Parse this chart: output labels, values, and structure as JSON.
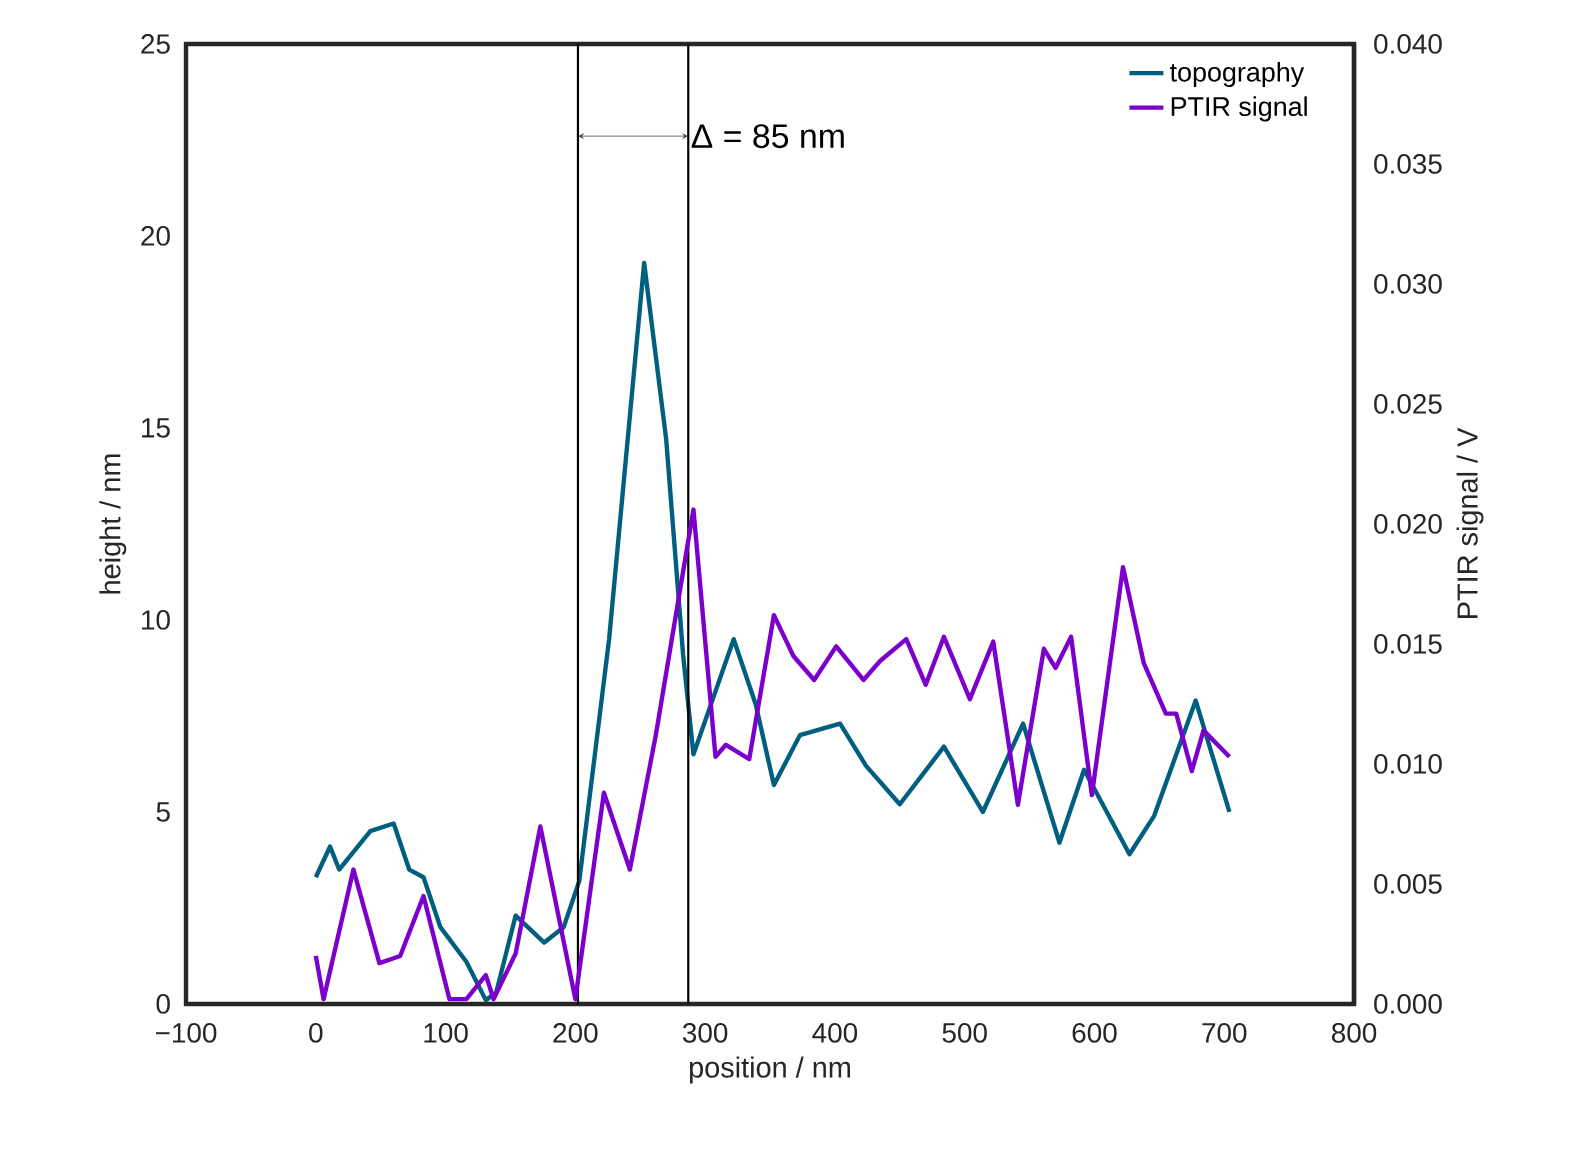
{
  "chart_data": {
    "type": "line",
    "xlabel": "position / nm",
    "ylabel": "height / nm",
    "y2label": "PTIR signal / V",
    "xlim": [
      -100,
      800
    ],
    "xticks": [
      {
        "value": -100,
        "label": "−100"
      },
      0,
      100,
      200,
      300,
      400,
      500,
      600,
      700,
      800
    ],
    "ylim": [
      0,
      25
    ],
    "yticks": [
      0,
      5,
      10,
      15,
      20,
      25
    ],
    "y2lim": [
      0,
      0.04
    ],
    "y2ticks": [
      {
        "value": 0,
        "label": "0.000"
      },
      {
        "value": 0.005,
        "label": "0.005"
      },
      {
        "value": 0.01,
        "label": "0.010"
      },
      {
        "value": 0.015,
        "label": "0.015"
      },
      {
        "value": 0.02,
        "label": "0.020"
      },
      {
        "value": 0.025,
        "label": "0.025"
      },
      {
        "value": 0.03,
        "label": "0.030"
      },
      {
        "value": 0.035,
        "label": "0.035"
      },
      {
        "value": 0.04,
        "label": "0.040"
      }
    ],
    "series": [
      {
        "name": "topography",
        "color": "#005f7f",
        "x": [
          0,
          11,
          18,
          42,
          60,
          72,
          83,
          96,
          116,
          131,
          139,
          154,
          176,
          191,
          203,
          226,
          253,
          270,
          283,
          291,
          322,
          339,
          353,
          373,
          404,
          424,
          450,
          484,
          514,
          545,
          573,
          592,
          627,
          646,
          678,
          704
        ],
        "values": [
          3.3,
          4.1,
          3.5,
          4.5,
          4.7,
          3.5,
          3.3,
          2.0,
          1.1,
          0.1,
          0.3,
          2.3,
          1.6,
          2.0,
          3.2,
          9.5,
          19.3,
          14.7,
          9.1,
          6.5,
          9.5,
          7.8,
          5.7,
          7.0,
          7.3,
          6.2,
          5.2,
          6.7,
          5.0,
          7.3,
          4.2,
          6.1,
          3.9,
          4.9,
          7.9,
          5.0
        ]
      },
      {
        "name": "PTIR signal",
        "color": "#7b00cc",
        "axis": "y2",
        "x": [
          0,
          6,
          29,
          49,
          65,
          83,
          103,
          116,
          131,
          137,
          154,
          173,
          200,
          222,
          242,
          262,
          291,
          308,
          316,
          334,
          353,
          368,
          384,
          401,
          422,
          435,
          455,
          470,
          484,
          504,
          522,
          541,
          561,
          570,
          582,
          598,
          622,
          638,
          655,
          663,
          675,
          684,
          704
        ],
        "values": [
          0.002,
          0.0002,
          0.0056,
          0.0017,
          0.002,
          0.0045,
          0.0002,
          0.0002,
          0.0012,
          0.0002,
          0.0021,
          0.0074,
          0.0002,
          0.0088,
          0.0056,
          0.0112,
          0.0206,
          0.0103,
          0.0108,
          0.0102,
          0.0162,
          0.0145,
          0.0135,
          0.0149,
          0.0135,
          0.0143,
          0.0152,
          0.0133,
          0.0153,
          0.0127,
          0.0151,
          0.0083,
          0.0148,
          0.014,
          0.0153,
          0.0087,
          0.0182,
          0.0142,
          0.0121,
          0.0121,
          0.0097,
          0.0114,
          0.0103
        ]
      }
    ],
    "ref_lines": [
      {
        "axis": "x",
        "value": 202,
        "color": "#000000"
      },
      {
        "axis": "x",
        "value": 287,
        "color": "#000000"
      }
    ],
    "annotations": [
      {
        "text": "Δ = 85 nm",
        "x": 287,
        "y": 22.6
      }
    ],
    "legend": "top right",
    "grid": false,
    "line_style": "solid",
    "marker": "none"
  }
}
